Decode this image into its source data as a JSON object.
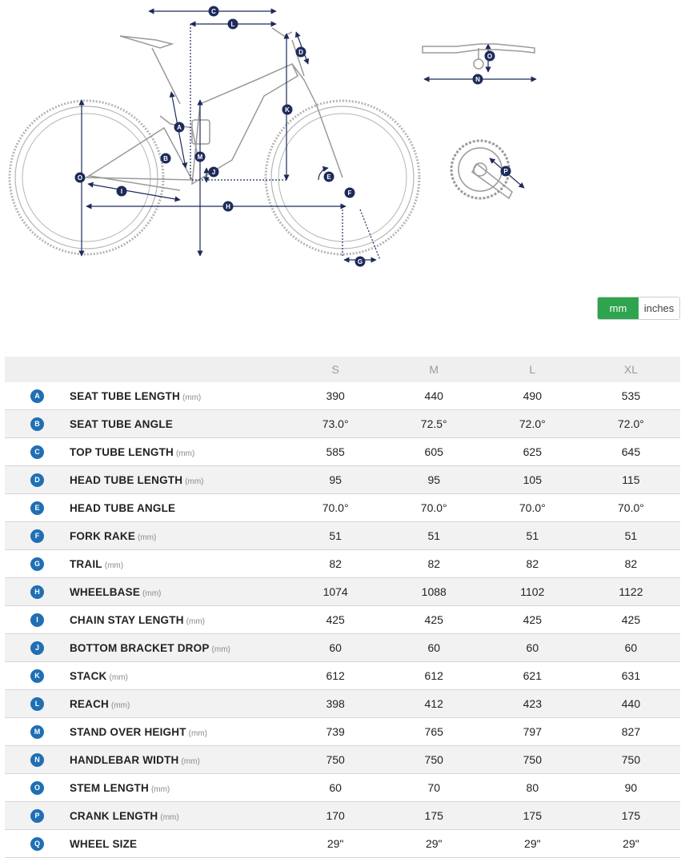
{
  "diagram": {
    "markers": [
      "A",
      "B",
      "C",
      "D",
      "E",
      "F",
      "G",
      "H",
      "I",
      "J",
      "K",
      "L",
      "M",
      "N",
      "O",
      "P"
    ],
    "marker_color": "#1e2a5a"
  },
  "units": {
    "options": [
      "mm",
      "inches"
    ],
    "active": "mm",
    "active_color": "#2ea44f"
  },
  "table": {
    "sizes": [
      "S",
      "M",
      "L",
      "XL"
    ],
    "rows": [
      {
        "letter": "A",
        "name": "SEAT TUBE LENGTH",
        "unit": "(mm)",
        "values": [
          "390",
          "440",
          "490",
          "535"
        ]
      },
      {
        "letter": "B",
        "name": "SEAT TUBE ANGLE",
        "unit": "",
        "values": [
          "73.0°",
          "72.5°",
          "72.0°",
          "72.0°"
        ]
      },
      {
        "letter": "C",
        "name": "TOP TUBE LENGTH",
        "unit": "(mm)",
        "values": [
          "585",
          "605",
          "625",
          "645"
        ]
      },
      {
        "letter": "D",
        "name": "HEAD TUBE LENGTH",
        "unit": "(mm)",
        "values": [
          "95",
          "95",
          "105",
          "115"
        ]
      },
      {
        "letter": "E",
        "name": "HEAD TUBE ANGLE",
        "unit": "",
        "values": [
          "70.0°",
          "70.0°",
          "70.0°",
          "70.0°"
        ]
      },
      {
        "letter": "F",
        "name": "FORK RAKE",
        "unit": "(mm)",
        "values": [
          "51",
          "51",
          "51",
          "51"
        ]
      },
      {
        "letter": "G",
        "name": "TRAIL",
        "unit": "(mm)",
        "values": [
          "82",
          "82",
          "82",
          "82"
        ]
      },
      {
        "letter": "H",
        "name": "WHEELBASE",
        "unit": "(mm)",
        "values": [
          "1074",
          "1088",
          "1102",
          "1122"
        ]
      },
      {
        "letter": "I",
        "name": "CHAIN STAY LENGTH",
        "unit": "(mm)",
        "values": [
          "425",
          "425",
          "425",
          "425"
        ]
      },
      {
        "letter": "J",
        "name": "BOTTOM BRACKET DROP",
        "unit": "(mm)",
        "values": [
          "60",
          "60",
          "60",
          "60"
        ]
      },
      {
        "letter": "K",
        "name": "STACK",
        "unit": "(mm)",
        "values": [
          "612",
          "612",
          "621",
          "631"
        ]
      },
      {
        "letter": "L",
        "name": "REACH",
        "unit": "(mm)",
        "values": [
          "398",
          "412",
          "423",
          "440"
        ]
      },
      {
        "letter": "M",
        "name": "STAND OVER HEIGHT",
        "unit": "(mm)",
        "values": [
          "739",
          "765",
          "797",
          "827"
        ]
      },
      {
        "letter": "N",
        "name": "HANDLEBAR WIDTH",
        "unit": "(mm)",
        "values": [
          "750",
          "750",
          "750",
          "750"
        ]
      },
      {
        "letter": "O",
        "name": "STEM LENGTH",
        "unit": "(mm)",
        "values": [
          "60",
          "70",
          "80",
          "90"
        ]
      },
      {
        "letter": "P",
        "name": "CRANK LENGTH",
        "unit": "(mm)",
        "values": [
          "170",
          "175",
          "175",
          "175"
        ]
      },
      {
        "letter": "Q",
        "name": "WHEEL SIZE",
        "unit": "",
        "values": [
          "29\"",
          "29\"",
          "29\"",
          "29\""
        ]
      }
    ],
    "badge_color": "#1f6fb5"
  }
}
